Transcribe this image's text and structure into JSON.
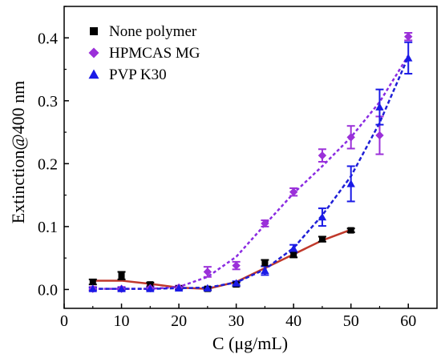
{
  "chart_data": {
    "type": "scatter",
    "xlabel": "C (μg/mL)",
    "ylabel": "Extinction@400 nm",
    "xlim": [
      0,
      65
    ],
    "ylim": [
      -0.03,
      0.45
    ],
    "xticks": [
      0,
      10,
      20,
      30,
      40,
      50,
      60
    ],
    "xtick_labels": [
      "0",
      "10",
      "20",
      "30",
      "40",
      "50",
      "60"
    ],
    "yticks": [
      0.0,
      0.1,
      0.2,
      0.3,
      0.4
    ],
    "ytick_labels": [
      "0.0",
      "0.1",
      "0.2",
      "0.3",
      "0.4"
    ],
    "grid": false,
    "legend_position": "top-left",
    "series": [
      {
        "name": "None polymer",
        "color": "#000000",
        "fit_color": "#c0392b",
        "marker": "square",
        "x": [
          5,
          10,
          15,
          20,
          25,
          30,
          35,
          40,
          45,
          50
        ],
        "y": [
          0.012,
          0.022,
          0.008,
          0.002,
          0.001,
          0.008,
          0.042,
          0.055,
          0.08,
          0.094
        ],
        "err": [
          0.004,
          0.006,
          0.003,
          0.002,
          0.002,
          0.003,
          0.005,
          0.004,
          0.004,
          0.003
        ],
        "fit_x": [
          5,
          10,
          15,
          20,
          25,
          30,
          35,
          40,
          45,
          50
        ],
        "fit_y": [
          0.014,
          0.014,
          0.009,
          0.003,
          0.001,
          0.012,
          0.034,
          0.056,
          0.078,
          0.095
        ]
      },
      {
        "name": "HPMCAS MG",
        "color": "#9b30d9",
        "fit_color": "#8a2be2",
        "marker": "diamond",
        "x": [
          5,
          10,
          15,
          20,
          25,
          30,
          35,
          40,
          45,
          50,
          55,
          60
        ],
        "y": [
          0.001,
          0.001,
          0.002,
          0.003,
          0.028,
          0.038,
          0.105,
          0.155,
          0.213,
          0.242,
          0.245,
          0.402
        ],
        "err": [
          0.003,
          0.003,
          0.003,
          0.003,
          0.008,
          0.006,
          0.005,
          0.006,
          0.01,
          0.018,
          0.03,
          0.006
        ],
        "fit_x": [
          5,
          10,
          15,
          20,
          25,
          30,
          35,
          40,
          45,
          50,
          55,
          60
        ],
        "fit_y": [
          0.001,
          0.001,
          0.001,
          0.004,
          0.02,
          0.052,
          0.103,
          0.153,
          0.196,
          0.242,
          0.298,
          0.372
        ]
      },
      {
        "name": "PVP K30",
        "color": "#1a1ae6",
        "fit_color": "#1f1fd6",
        "marker": "triangle",
        "x": [
          5,
          10,
          15,
          20,
          25,
          30,
          35,
          40,
          45,
          50,
          55,
          60
        ],
        "y": [
          0.001,
          0.001,
          0.001,
          0.002,
          0.002,
          0.01,
          0.03,
          0.065,
          0.115,
          0.168,
          0.29,
          0.368
        ],
        "err": [
          0.002,
          0.002,
          0.002,
          0.002,
          0.002,
          0.003,
          0.007,
          0.006,
          0.014,
          0.028,
          0.028,
          0.025
        ],
        "fit_x": [
          5,
          10,
          15,
          20,
          25,
          30,
          35,
          40,
          45,
          50,
          55,
          60
        ],
        "fit_y": [
          0.001,
          0.001,
          0.001,
          0.002,
          0.003,
          0.011,
          0.032,
          0.066,
          0.118,
          0.18,
          0.265,
          0.37
        ]
      }
    ]
  }
}
